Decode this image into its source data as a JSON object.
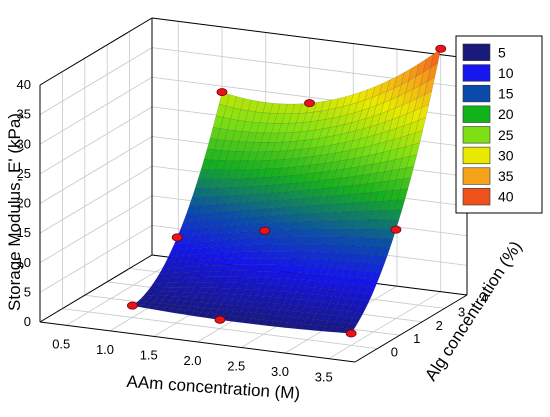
{
  "chart_data": {
    "type": "surface3d",
    "title": "",
    "xlabel": "AAm concentration (M)",
    "ylabel": "Alg concentration (%)",
    "zlabel": "Storage Modulus, E' (kPa)",
    "xticks": [
      "0.5",
      "1.0",
      "1.5",
      "2.0",
      "2.5",
      "3.0",
      "3.5"
    ],
    "yticks": [
      "0",
      "1",
      "2",
      "3",
      "4"
    ],
    "zticks": [
      "0",
      "5",
      "10",
      "15",
      "20",
      "25",
      "30",
      "35",
      "40"
    ],
    "xlim": [
      0.2,
      3.8
    ],
    "ylim": [
      -1,
      4
    ],
    "zlim": [
      0,
      40
    ],
    "grid": true,
    "legend_position": "top-right",
    "colorbar": [
      {
        "label": "5",
        "color": "#1a1a7a"
      },
      {
        "label": "10",
        "color": "#1616f0"
      },
      {
        "label": "15",
        "color": "#0a4aa8"
      },
      {
        "label": "20",
        "color": "#10b41a"
      },
      {
        "label": "25",
        "color": "#7ee014"
      },
      {
        "label": "30",
        "color": "#eaea00"
      },
      {
        "label": "35",
        "color": "#f6a21a"
      },
      {
        "label": "40",
        "color": "#f0501a"
      }
    ],
    "points": [
      {
        "x": 1.0,
        "y": 0,
        "z": 2
      },
      {
        "x": 2.0,
        "y": 0,
        "z": 1.5
      },
      {
        "x": 3.5,
        "y": 0,
        "z": 2
      },
      {
        "x": 1.0,
        "y": 2,
        "z": 9
      },
      {
        "x": 2.0,
        "y": 2,
        "z": 12
      },
      {
        "x": 3.5,
        "y": 2,
        "z": 15
      },
      {
        "x": 1.0,
        "y": 4,
        "z": 29
      },
      {
        "x": 2.0,
        "y": 4,
        "z": 29
      },
      {
        "x": 3.5,
        "y": 4,
        "z": 41
      }
    ]
  }
}
